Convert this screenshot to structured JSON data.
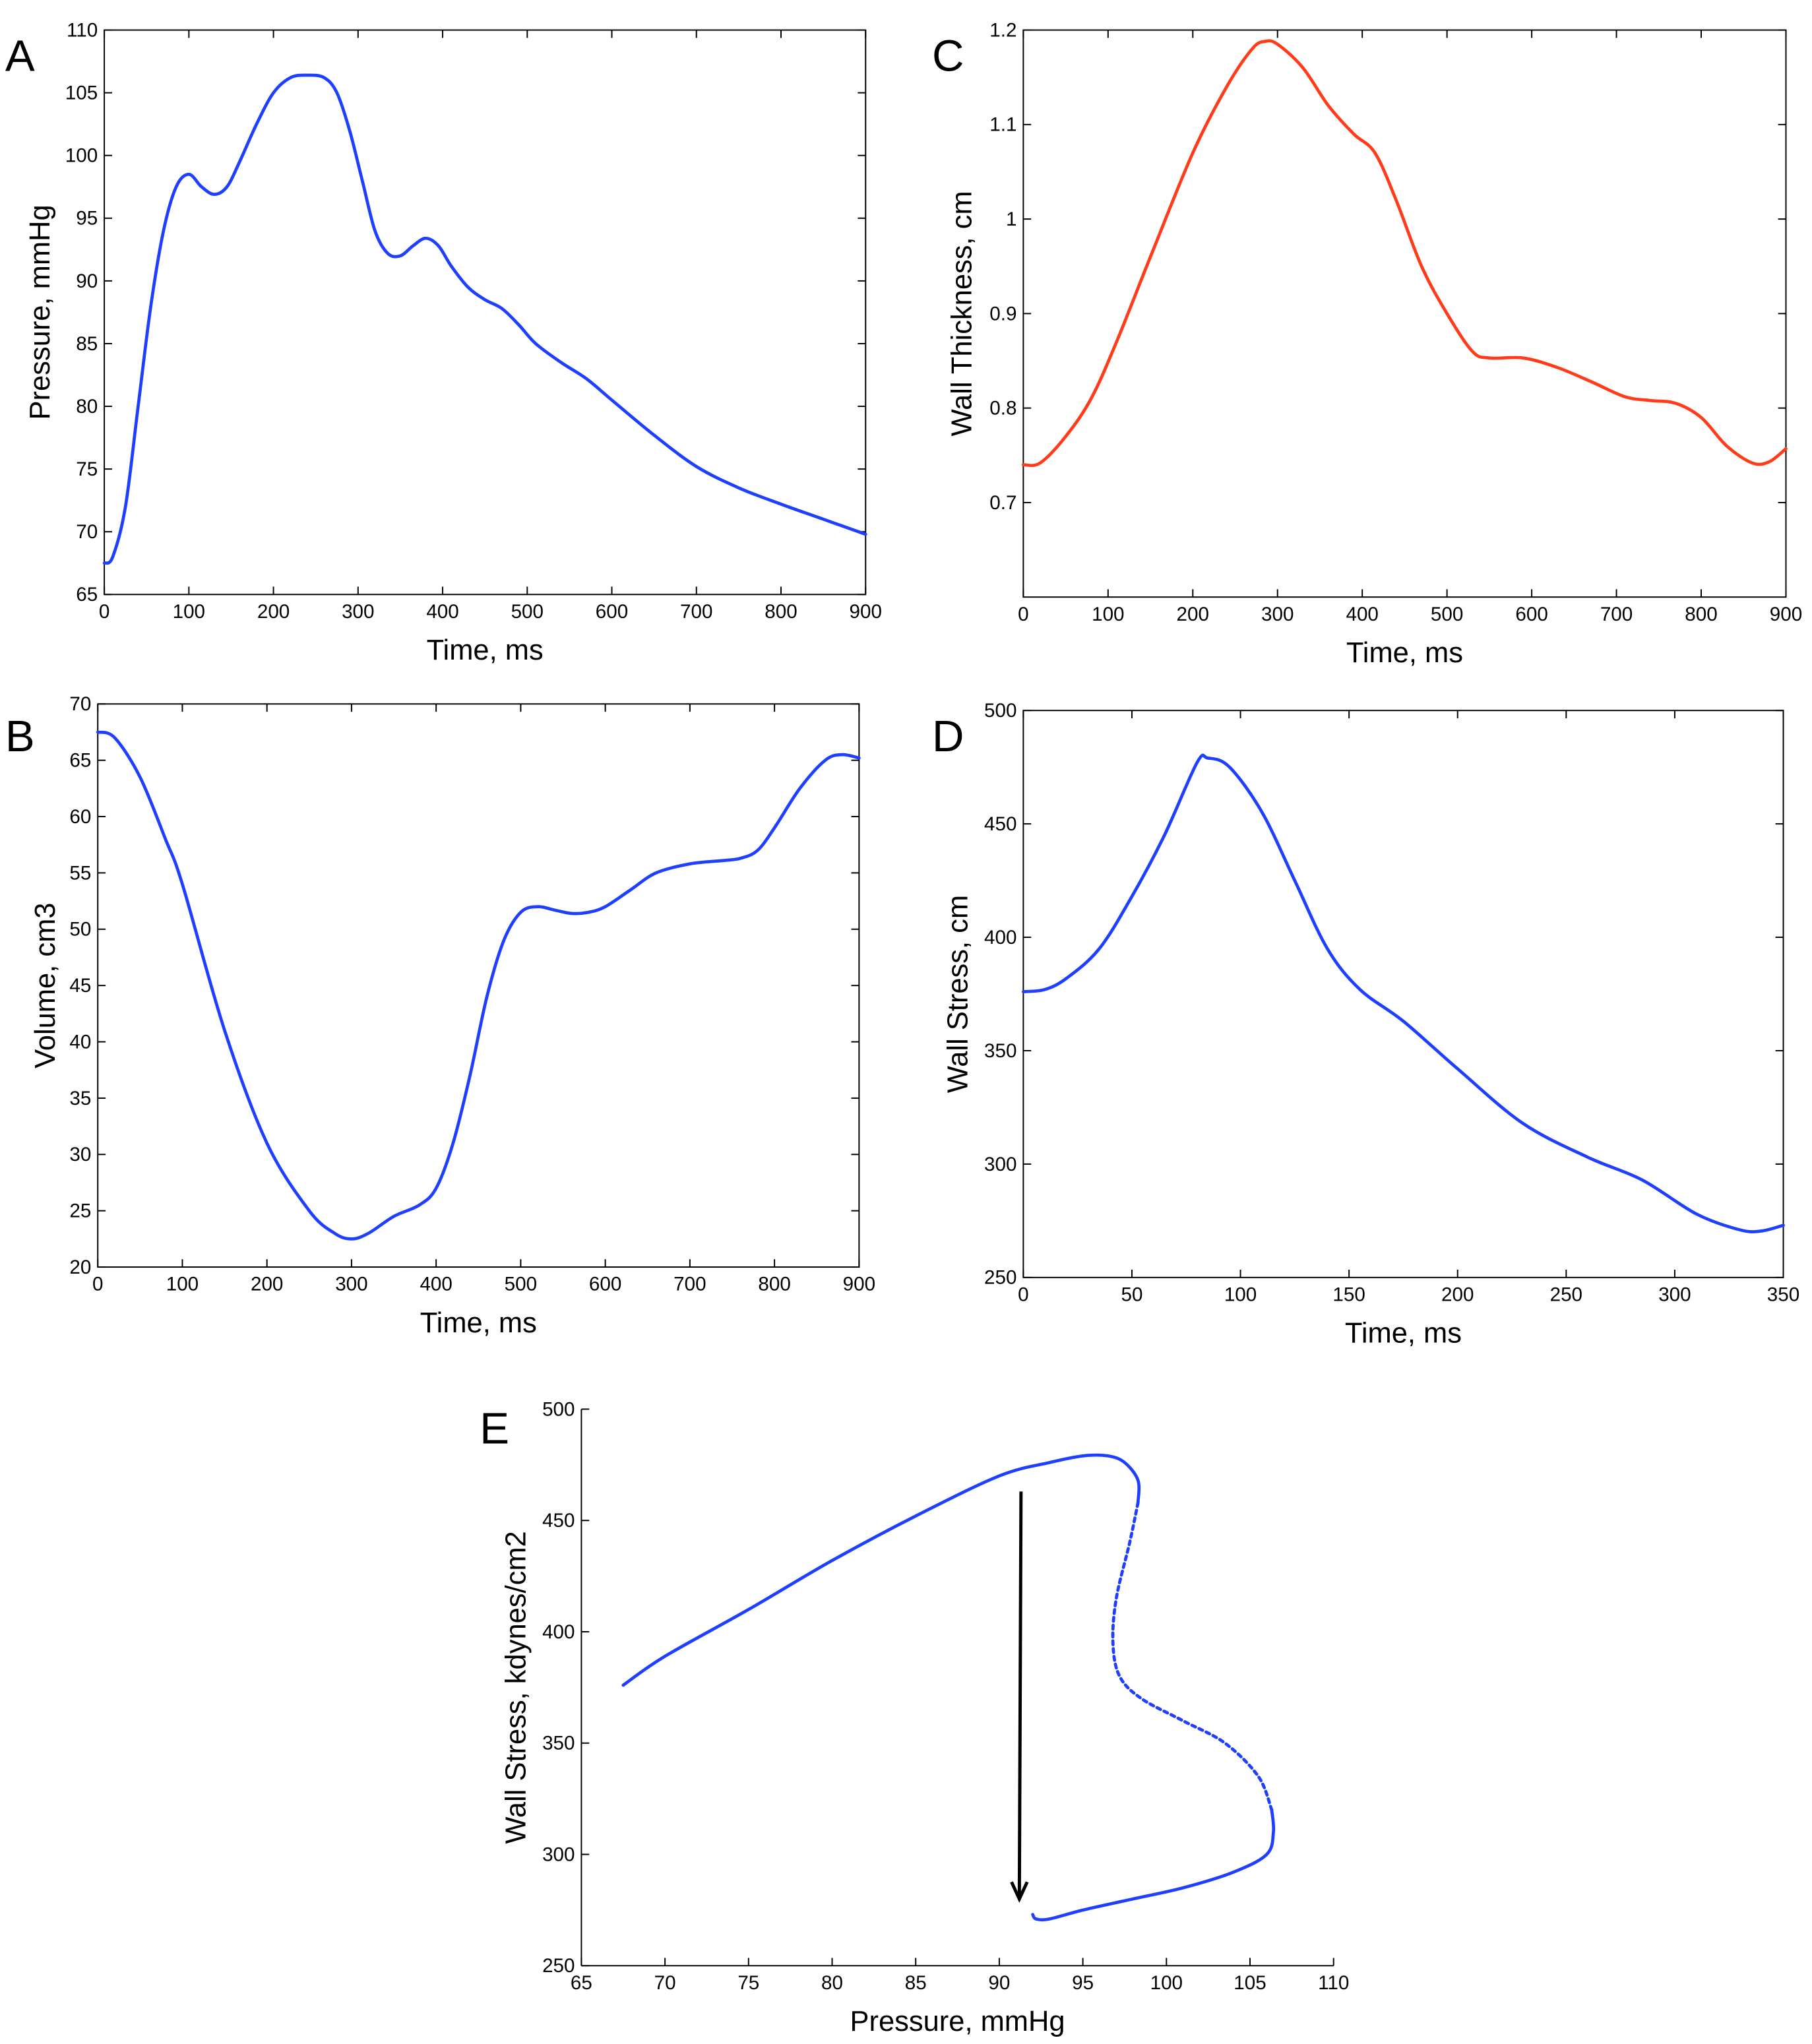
{
  "chart_data": [
    {
      "panel": "A",
      "type": "line",
      "xlabel": "Time, ms",
      "ylabel": "Pressure, mmHg",
      "xlim": [
        0,
        900
      ],
      "ylim": [
        65,
        110
      ],
      "xticks": [
        0,
        100,
        200,
        300,
        400,
        500,
        600,
        700,
        800,
        900
      ],
      "yticks": [
        65,
        70,
        75,
        80,
        85,
        90,
        95,
        100,
        105,
        110
      ],
      "grid": false,
      "series": [
        {
          "name": "pressure",
          "color": "#1f3fff",
          "style": "solid",
          "x": [
            0,
            10,
            25,
            40,
            55,
            70,
            85,
            100,
            115,
            130,
            145,
            160,
            180,
            200,
            220,
            240,
            260,
            275,
            290,
            305,
            320,
            335,
            350,
            365,
            380,
            395,
            410,
            430,
            450,
            470,
            490,
            510,
            540,
            570,
            600,
            650,
            700,
            750,
            800,
            850,
            900
          ],
          "y": [
            67.5,
            68,
            72,
            80,
            88,
            94,
            97.5,
            98.5,
            97.5,
            96.9,
            97.5,
            99.5,
            102.5,
            105,
            106.2,
            106.4,
            106.2,
            105,
            102,
            98,
            94,
            92.2,
            92,
            92.8,
            93.4,
            92.8,
            91.2,
            89.5,
            88.5,
            87.8,
            86.5,
            85,
            83.5,
            82.2,
            80.5,
            77.7,
            75.2,
            73.5,
            72.2,
            71,
            69.8
          ]
        }
      ]
    },
    {
      "panel": "B",
      "type": "line",
      "xlabel": "Time, ms",
      "ylabel": "Volume, cm3",
      "xlim": [
        0,
        900
      ],
      "ylim": [
        20,
        70
      ],
      "xticks": [
        0,
        100,
        200,
        300,
        400,
        500,
        600,
        700,
        800,
        900
      ],
      "yticks": [
        20,
        25,
        30,
        35,
        40,
        45,
        50,
        55,
        60,
        65,
        70
      ],
      "grid": false,
      "series": [
        {
          "name": "volume",
          "color": "#1f3fff",
          "style": "solid",
          "x": [
            0,
            20,
            50,
            80,
            100,
            150,
            200,
            250,
            280,
            300,
            320,
            350,
            380,
            400,
            420,
            440,
            460,
            480,
            500,
            520,
            540,
            560,
            580,
            600,
            630,
            660,
            700,
            740,
            760,
            780,
            800,
            830,
            860,
            880,
            900
          ],
          "y": [
            67.5,
            67,
            63.5,
            58,
            54,
            41,
            31,
            25,
            23,
            22.5,
            23,
            24.5,
            25.5,
            27,
            31,
            37,
            44,
            49,
            51.5,
            52,
            51.7,
            51.4,
            51.5,
            52,
            53.5,
            55,
            55.8,
            56.1,
            56.3,
            57,
            59,
            62.5,
            65,
            65.5,
            65.2
          ]
        }
      ]
    },
    {
      "panel": "C",
      "type": "line",
      "xlabel": "Time, ms",
      "ylabel": "Wall Thickness, cm",
      "xlim": [
        0,
        900
      ],
      "ylim": [
        0.6,
        1.2
      ],
      "xticks": [
        0,
        100,
        200,
        300,
        400,
        500,
        600,
        700,
        800,
        900
      ],
      "yticks": [
        0.7,
        0.8,
        0.9,
        1,
        1.1,
        1.2
      ],
      "grid": false,
      "series": [
        {
          "name": "wall thickness",
          "color": "#ff3b1a",
          "style": "solid",
          "x": [
            0,
            20,
            50,
            80,
            110,
            150,
            200,
            240,
            270,
            285,
            300,
            330,
            360,
            390,
            415,
            440,
            470,
            500,
            530,
            550,
            590,
            630,
            670,
            710,
            740,
            770,
            800,
            830,
            860,
            880,
            900
          ],
          "y": [
            0.74,
            0.742,
            0.77,
            0.81,
            0.87,
            0.96,
            1.07,
            1.14,
            1.18,
            1.188,
            1.185,
            1.16,
            1.12,
            1.09,
            1.07,
            1.02,
            0.95,
            0.9,
            0.86,
            0.853,
            0.853,
            0.843,
            0.828,
            0.812,
            0.808,
            0.805,
            0.79,
            0.76,
            0.742,
            0.743,
            0.757
          ]
        }
      ]
    },
    {
      "panel": "D",
      "type": "line",
      "xlabel": "Time, ms",
      "ylabel": "Wall Stress, cm",
      "xlim": [
        0,
        350
      ],
      "ylim": [
        250,
        500
      ],
      "xticks": [
        0,
        50,
        100,
        150,
        200,
        250,
        300,
        350
      ],
      "yticks": [
        250,
        300,
        350,
        400,
        450,
        500
      ],
      "grid": false,
      "series": [
        {
          "name": "wall stress",
          "color": "#1f3fff",
          "style": "solid",
          "x": [
            0,
            10,
            20,
            35,
            50,
            65,
            80,
            85,
            95,
            110,
            125,
            140,
            155,
            175,
            200,
            230,
            260,
            285,
            310,
            330,
            340,
            350
          ],
          "y": [
            376,
            377,
            382,
            395,
            418,
            445,
            477,
            479,
            475,
            455,
            425,
            395,
            377,
            363,
            342,
            318,
            303,
            293,
            278,
            271,
            270.5,
            273
          ]
        }
      ]
    },
    {
      "panel": "E",
      "type": "line",
      "xlabel": "Pressure, mmHg",
      "ylabel": "Wall Stress, kdynes/cm2",
      "xlim": [
        65,
        110
      ],
      "ylim": [
        250,
        500
      ],
      "xticks": [
        65,
        70,
        75,
        80,
        85,
        90,
        95,
        100,
        105,
        110
      ],
      "yticks": [
        250,
        300,
        350,
        400,
        450,
        500
      ],
      "grid": false,
      "series": [
        {
          "name": "loop-upper",
          "color": "#1f3fff",
          "style": "solid",
          "x": [
            67.5,
            70,
            75,
            80,
            85,
            90,
            93,
            95,
            96.5,
            97.5,
            98.3,
            98.3
          ],
          "y": [
            376,
            389,
            410,
            432,
            452,
            470,
            476,
            479,
            479,
            476,
            468,
            458
          ]
        },
        {
          "name": "loop-dashed",
          "color": "#1f3fff",
          "style": "dashed",
          "x": [
            98.3,
            97.8,
            97,
            96.8,
            97.2,
            98.5,
            101,
            103.5,
            105.5,
            106.3
          ],
          "y": [
            458,
            440,
            415,
            395,
            380,
            370,
            360,
            350,
            335,
            320
          ]
        },
        {
          "name": "loop-lower",
          "color": "#1f3fff",
          "style": "solid",
          "x": [
            106.3,
            106.4,
            106,
            104,
            101,
            98,
            95,
            93,
            92.2,
            92
          ],
          "y": [
            320,
            310,
            300,
            292,
            285,
            280,
            275,
            271,
            271,
            273
          ]
        }
      ],
      "annotations": [
        {
          "type": "arrow",
          "direction": "down",
          "x": [
            91.3,
            91.2
          ],
          "y": [
            463,
            280
          ],
          "color": "#000000"
        }
      ]
    }
  ]
}
